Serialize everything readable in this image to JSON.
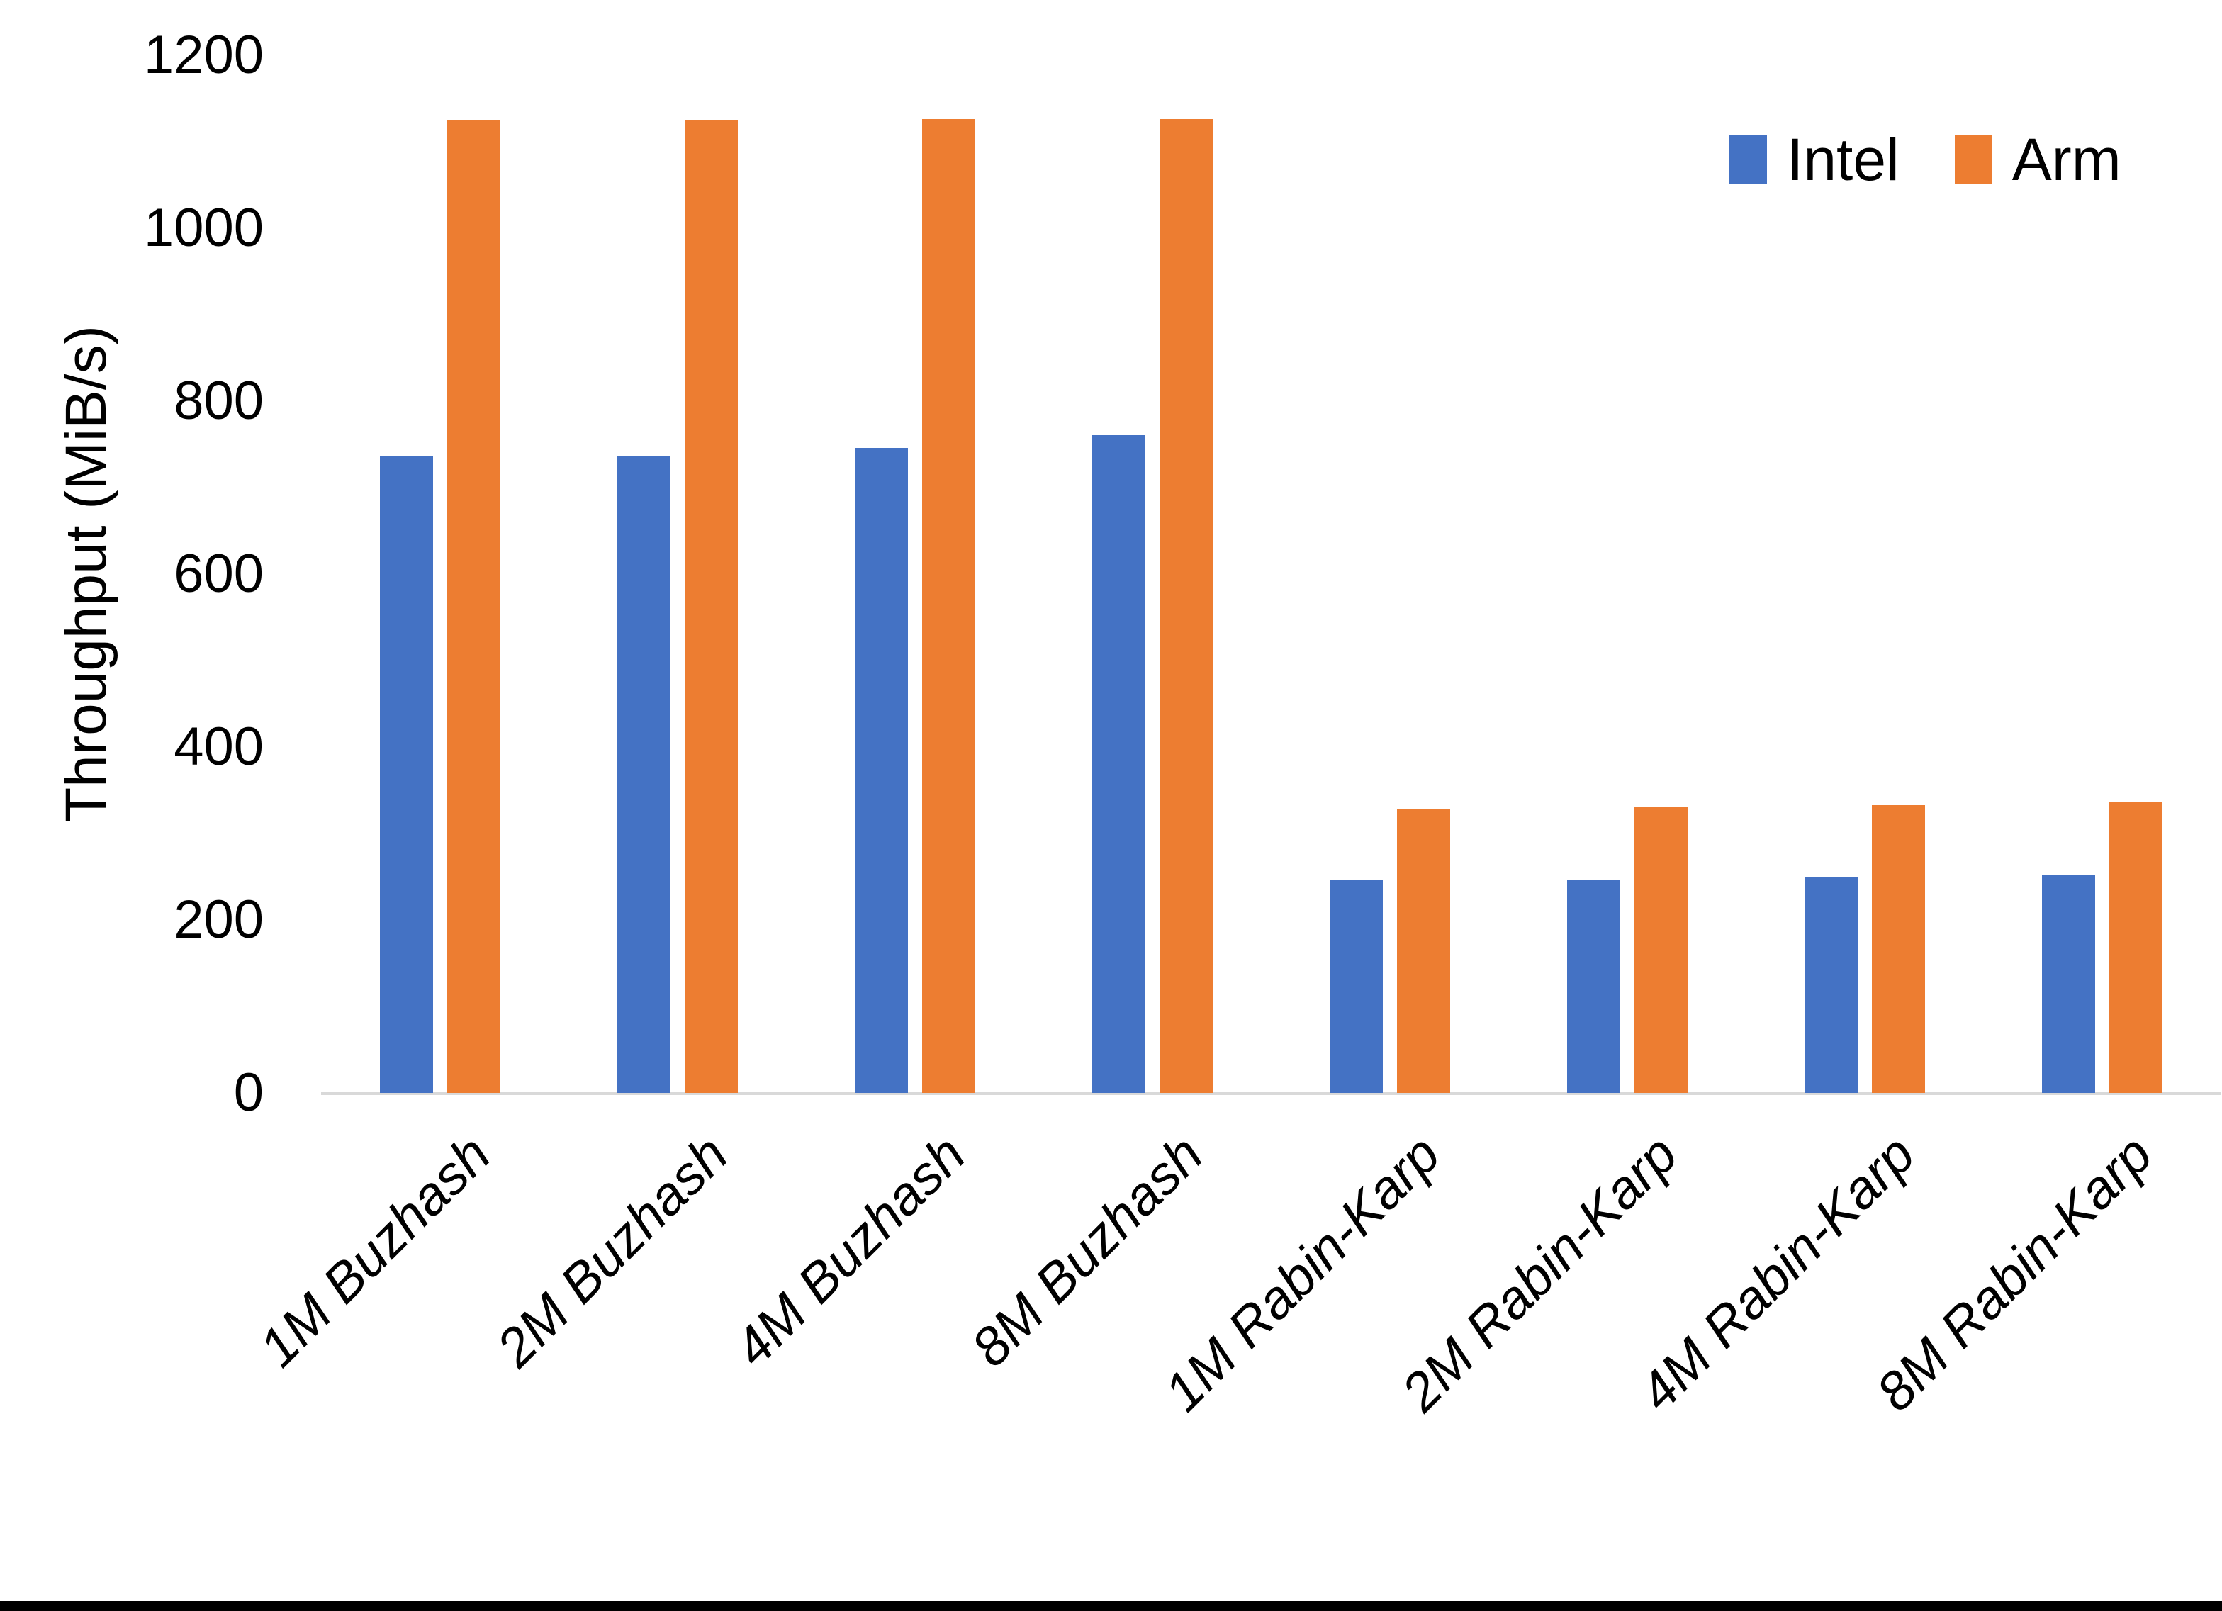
{
  "chart_data": {
    "type": "bar",
    "title": "",
    "xlabel": "",
    "ylabel": "Throughput (MiB/s)",
    "ylim": [
      0,
      1200
    ],
    "ytick_interval": 200,
    "yticks": [
      0,
      200,
      400,
      600,
      800,
      1000,
      1200
    ],
    "grid": false,
    "legend_position": "top-right",
    "categories": [
      "1M Buzhash",
      "2M Buzhash",
      "4M Buzhash",
      "8M Buzhash",
      "1M Rabin-Karp",
      "2M Rabin-Karp",
      "4M Rabin-Karp",
      "8M Rabin-Karp"
    ],
    "series": [
      {
        "name": "Intel",
        "color": "#4472C4",
        "values": [
          737,
          737,
          746,
          761,
          247,
          247,
          250,
          252
        ]
      },
      {
        "name": "Arm",
        "color": "#ED7D31",
        "values": [
          1125,
          1125,
          1126,
          1126,
          328,
          330,
          333,
          336
        ]
      }
    ]
  },
  "colors": {
    "background": "#FFFFFF",
    "text": "#000000",
    "axis_line": "#D9D9D9",
    "bottom_frame": "#000000"
  }
}
